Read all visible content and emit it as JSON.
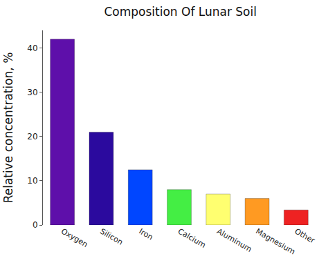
{
  "chart_data": {
    "type": "bar",
    "title": "Composition Of Lunar Soil",
    "y_label": "Relative concentration, %",
    "categories": [
      "Oxygen",
      "Silicon",
      "Iron",
      "Calcium",
      "Aluminum",
      "Magnesium",
      "Other"
    ],
    "values": [
      42,
      21,
      12.5,
      8,
      7,
      6,
      3.4
    ],
    "colors": [
      "#5e0faa",
      "#2b0a9e",
      "#0046ff",
      "#44ee44",
      "#ffff70",
      "#ff9a22",
      "#ee2222"
    ],
    "ylim": [
      0,
      44
    ],
    "yticks": [
      0,
      10,
      20,
      30,
      40
    ],
    "grid": true
  }
}
